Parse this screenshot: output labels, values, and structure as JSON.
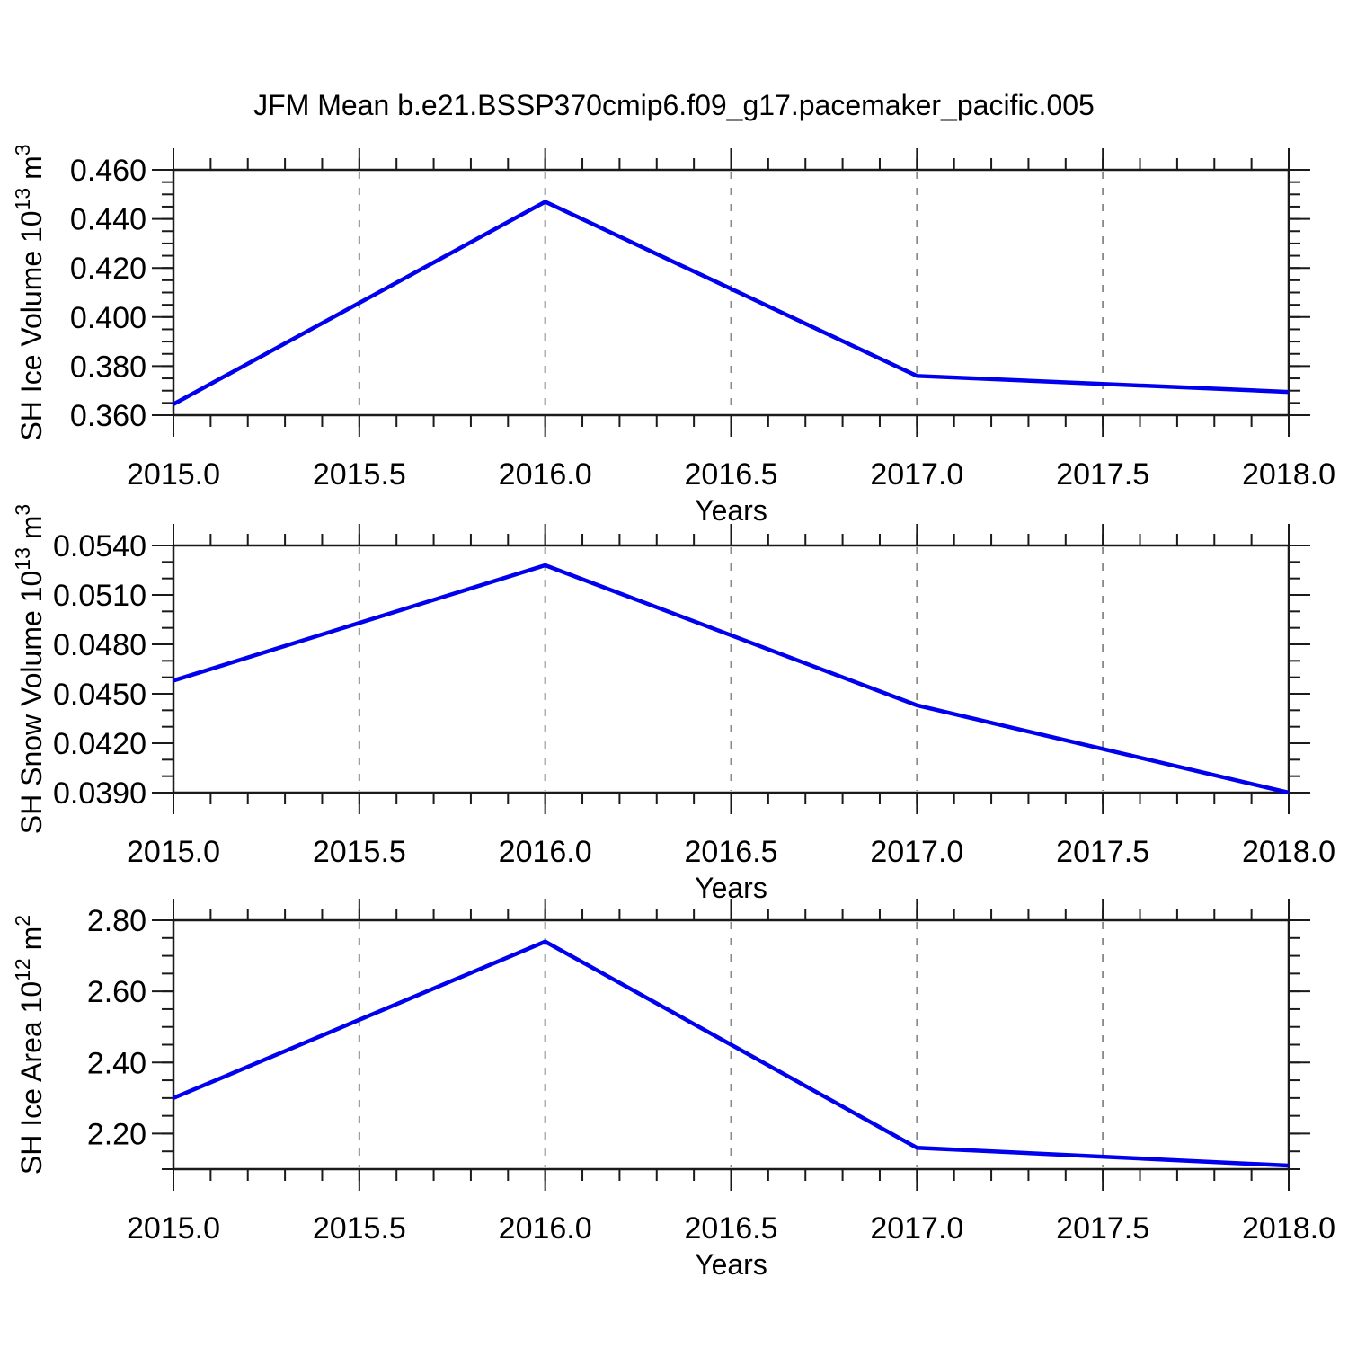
{
  "title": "JFM Mean b.e21.BSSP370cmip6.f09_g17.pacemaker_pacific.005",
  "colors": {
    "line": "#0000EE",
    "grid": "#8A8A8A",
    "axis": "#1A1A1A",
    "background": "#FFFFFF",
    "text": "#000000"
  },
  "chart_data": [
    {
      "type": "line",
      "ylabel_parts": [
        {
          "t": "SH Ice Volume 10"
        },
        {
          "t": "13",
          "sup": true
        },
        {
          "t": " m"
        },
        {
          "t": "3",
          "sup": true
        }
      ],
      "xlabel": "Years",
      "x": [
        2015.0,
        2016.0,
        2017.0,
        2018.0
      ],
      "values": [
        0.3645,
        0.447,
        0.376,
        0.3695
      ],
      "xlim": [
        2015.0,
        2018.0
      ],
      "ylim": [
        0.36,
        0.46
      ],
      "xticks": {
        "major": [
          2015.0,
          2015.5,
          2016.0,
          2016.5,
          2017.0,
          2017.5,
          2018.0
        ],
        "labels": [
          "2015.0",
          "2015.5",
          "2016.0",
          "2016.5",
          "2017.0",
          "2017.5",
          "2018.0"
        ],
        "minor_step": 0.1
      },
      "yticks": {
        "major": [
          0.36,
          0.38,
          0.4,
          0.42,
          0.44,
          0.46
        ],
        "labels": [
          "0.360",
          "0.380",
          "0.400",
          "0.420",
          "0.440",
          "0.460"
        ],
        "minor_step": 0.005
      },
      "grid_x": [
        2015.5,
        2016.0,
        2016.5,
        2017.0,
        2017.5
      ]
    },
    {
      "type": "line",
      "ylabel_parts": [
        {
          "t": "SH Snow Volume 10"
        },
        {
          "t": "13",
          "sup": true
        },
        {
          "t": " m"
        },
        {
          "t": "3",
          "sup": true
        }
      ],
      "xlabel": "Years",
      "x": [
        2015.0,
        2016.0,
        2017.0,
        2018.0
      ],
      "values": [
        0.0458,
        0.0528,
        0.0443,
        0.039
      ],
      "xlim": [
        2015.0,
        2018.0
      ],
      "ylim": [
        0.039,
        0.054
      ],
      "xticks": {
        "major": [
          2015.0,
          2015.5,
          2016.0,
          2016.5,
          2017.0,
          2017.5,
          2018.0
        ],
        "labels": [
          "2015.0",
          "2015.5",
          "2016.0",
          "2016.5",
          "2017.0",
          "2017.5",
          "2018.0"
        ],
        "minor_step": 0.1
      },
      "yticks": {
        "major": [
          0.039,
          0.042,
          0.045,
          0.048,
          0.051,
          0.054
        ],
        "labels": [
          "0.0390",
          "0.0420",
          "0.0450",
          "0.0480",
          "0.0510",
          "0.0540"
        ],
        "minor_step": 0.001
      },
      "grid_x": [
        2015.5,
        2016.0,
        2016.5,
        2017.0,
        2017.5
      ]
    },
    {
      "type": "line",
      "ylabel_parts": [
        {
          "t": "SH Ice Area 10"
        },
        {
          "t": "12",
          "sup": true
        },
        {
          "t": " m"
        },
        {
          "t": "2",
          "sup": true
        }
      ],
      "xlabel": "Years",
      "x": [
        2015.0,
        2016.0,
        2017.0,
        2018.0
      ],
      "values": [
        2.3,
        2.74,
        2.16,
        2.11
      ],
      "xlim": [
        2015.0,
        2018.0
      ],
      "ylim": [
        2.1,
        2.8
      ],
      "xticks": {
        "major": [
          2015.0,
          2015.5,
          2016.0,
          2016.5,
          2017.0,
          2017.5,
          2018.0
        ],
        "labels": [
          "2015.0",
          "2015.5",
          "2016.0",
          "2016.5",
          "2017.0",
          "2017.5",
          "2018.0"
        ],
        "minor_step": 0.1
      },
      "yticks": {
        "major": [
          2.2,
          2.4,
          2.6,
          2.8
        ],
        "labels": [
          "2.20",
          "2.40",
          "2.60",
          "2.80"
        ],
        "minor_step": 0.05
      },
      "grid_x": [
        2015.5,
        2016.0,
        2016.5,
        2017.0,
        2017.5
      ]
    }
  ]
}
